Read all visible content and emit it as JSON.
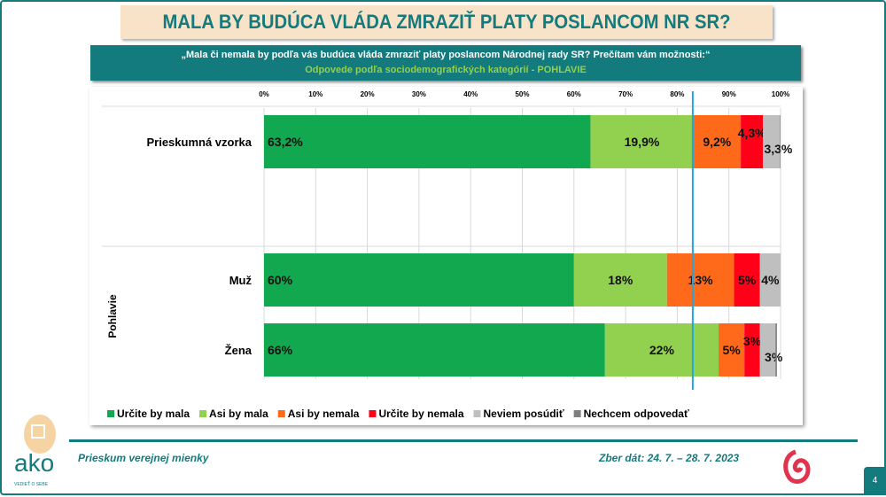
{
  "header": {
    "title": "MALA BY BUDÚCA VLÁDA ZMRAZIŤ PLATY POSLANCOM NR SR?",
    "question": "„Mala či nemala by podľa vás budúca vláda zmraziť platy poslancom Národnej rady SR? Prečítam vám možnosti:“",
    "subtitle": "Odpovede podľa sociodemografických  kategórií - POHLAVIE"
  },
  "footer": {
    "left": "Prieskum verejnej mienky",
    "right": "Zber dát: 24. 7. – 28. 7. 2023",
    "page": "4",
    "logo_text": "ako",
    "logo_tagline": "VEDIEŤ O SEBE"
  },
  "chart_data": {
    "type": "bar",
    "orientation": "horizontal",
    "stacked": true,
    "xlim": [
      0,
      100
    ],
    "x_ticks": [
      "0%",
      "10%",
      "20%",
      "30%",
      "40%",
      "50%",
      "60%",
      "70%",
      "80%",
      "90%",
      "100%"
    ],
    "grid": true,
    "legend": "bottom",
    "group_label": "Pohlavie",
    "reference_line": 83,
    "categories": [
      "Prieskumná vzorka",
      "Muž",
      "Žena"
    ],
    "series": [
      {
        "name": "Určite by mala",
        "color": "#12a850",
        "values": [
          63.2,
          60,
          66
        ],
        "labels": [
          "63,2%",
          "60%",
          "66%"
        ]
      },
      {
        "name": "Asi by mala",
        "color": "#92d050",
        "values": [
          19.9,
          18,
          22
        ],
        "labels": [
          "19,9%",
          "18%",
          "22%"
        ]
      },
      {
        "name": "Asi by nemala",
        "color": "#ff6a1a",
        "values": [
          9.2,
          13,
          5
        ],
        "labels": [
          "9,2%",
          "13%",
          "5%"
        ]
      },
      {
        "name": "Určite by nemala",
        "color": "#ff0018",
        "values": [
          4.3,
          5,
          3
        ],
        "labels": [
          "4,3%",
          "5%",
          "3%"
        ]
      },
      {
        "name": "Neviem posúdiť",
        "color": "#bfbfbf",
        "values": [
          3.3,
          4,
          3
        ],
        "labels": [
          "3,3%",
          "4%",
          "3%"
        ]
      },
      {
        "name": "Nechcem odpovedať",
        "color": "#7f7f7f",
        "values": [
          0.1,
          0,
          0.3
        ],
        "labels": [
          "",
          "",
          ""
        ]
      }
    ]
  }
}
